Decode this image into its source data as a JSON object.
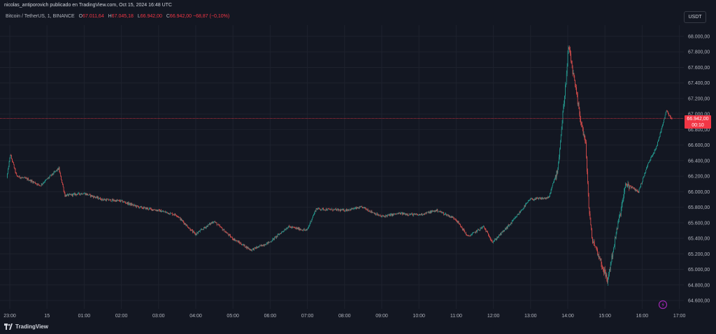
{
  "header": {
    "attribution": "nicolas_antiporovich publicado en TradingView.com, Oct 15, 2024 16:48 UTC"
  },
  "legend": {
    "symbol": "Bitcoin / TetherUS, 1, BINANCE",
    "open_label": "O",
    "open": "67.011,64",
    "high_label": "H",
    "high": "67.045,18",
    "low_label": "L",
    "low": "66.942,00",
    "close_label": "C",
    "close": "66.942,00",
    "change": "−68,87 (−0,10%)"
  },
  "toolbar": {
    "currency": "USDT"
  },
  "price_badge": {
    "price": "66.942,00",
    "countdown": "00:10"
  },
  "footer": {
    "brand": "TradingView"
  },
  "icons": {
    "alert": "lightning-icon",
    "logo": "tradingview-logo-icon"
  },
  "colors": {
    "background": "#131722",
    "up": "#26a69a",
    "down": "#ef5350",
    "grid": "#1e222d",
    "price_line": "#f23645"
  },
  "chart_data": {
    "type": "candlestick",
    "interval": "1 minute",
    "ylim": [
      64500,
      68200
    ],
    "y_ticks": [
      "68.000,00",
      "67.800,00",
      "67.600,00",
      "67.400,00",
      "67.200,00",
      "67.000,00",
      "66.800,00",
      "66.600,00",
      "66.400,00",
      "66.200,00",
      "66.000,00",
      "65.800,00",
      "65.600,00",
      "65.400,00",
      "65.200,00",
      "65.000,00",
      "64.800,00",
      "64.600,00"
    ],
    "x_ticks": [
      "23:00",
      "15",
      "01:00",
      "02:00",
      "03:00",
      "04:00",
      "05:00",
      "06:00",
      "07:00",
      "08:00",
      "09:00",
      "10:00",
      "11:00",
      "12:00",
      "13:00",
      "14:00",
      "15:00",
      "16:00",
      "17:00"
    ],
    "last_price": 66942,
    "grid": true,
    "approx_path": [
      {
        "time": "22:56",
        "price": 66180
      },
      {
        "time": "23:02",
        "price": 66480
      },
      {
        "time": "23:12",
        "price": 66200
      },
      {
        "time": "23:30",
        "price": 66160
      },
      {
        "time": "23:50",
        "price": 66080
      },
      {
        "time": "00:20",
        "price": 66300
      },
      {
        "time": "00:30",
        "price": 65950
      },
      {
        "time": "01:00",
        "price": 65980
      },
      {
        "time": "01:30",
        "price": 65900
      },
      {
        "time": "02:00",
        "price": 65880
      },
      {
        "time": "02:30",
        "price": 65800
      },
      {
        "time": "03:00",
        "price": 65760
      },
      {
        "time": "03:30",
        "price": 65700
      },
      {
        "time": "04:00",
        "price": 65450
      },
      {
        "time": "04:30",
        "price": 65620
      },
      {
        "time": "05:00",
        "price": 65400
      },
      {
        "time": "05:30",
        "price": 65250
      },
      {
        "time": "06:00",
        "price": 65350
      },
      {
        "time": "06:30",
        "price": 65550
      },
      {
        "time": "07:00",
        "price": 65500
      },
      {
        "time": "07:15",
        "price": 65780
      },
      {
        "time": "08:00",
        "price": 65760
      },
      {
        "time": "08:30",
        "price": 65800
      },
      {
        "time": "09:00",
        "price": 65680
      },
      {
        "time": "09:30",
        "price": 65720
      },
      {
        "time": "10:00",
        "price": 65700
      },
      {
        "time": "10:30",
        "price": 65760
      },
      {
        "time": "11:00",
        "price": 65650
      },
      {
        "time": "11:20",
        "price": 65420
      },
      {
        "time": "11:45",
        "price": 65550
      },
      {
        "time": "12:00",
        "price": 65350
      },
      {
        "time": "12:30",
        "price": 65600
      },
      {
        "time": "13:00",
        "price": 65900
      },
      {
        "time": "13:30",
        "price": 65920
      },
      {
        "time": "13:45",
        "price": 66300
      },
      {
        "time": "14:00",
        "price": 67600
      },
      {
        "time": "14:02",
        "price": 67880
      },
      {
        "time": "14:10",
        "price": 67500
      },
      {
        "time": "14:20",
        "price": 67000
      },
      {
        "time": "14:30",
        "price": 66600
      },
      {
        "time": "14:35",
        "price": 65800
      },
      {
        "time": "14:40",
        "price": 65400
      },
      {
        "time": "14:50",
        "price": 65200
      },
      {
        "time": "15:05",
        "price": 64850
      },
      {
        "time": "15:20",
        "price": 65500
      },
      {
        "time": "15:35",
        "price": 66100
      },
      {
        "time": "15:55",
        "price": 66000
      },
      {
        "time": "16:10",
        "price": 66350
      },
      {
        "time": "16:25",
        "price": 66600
      },
      {
        "time": "16:40",
        "price": 67050
      },
      {
        "time": "16:48",
        "price": 66942
      }
    ]
  }
}
